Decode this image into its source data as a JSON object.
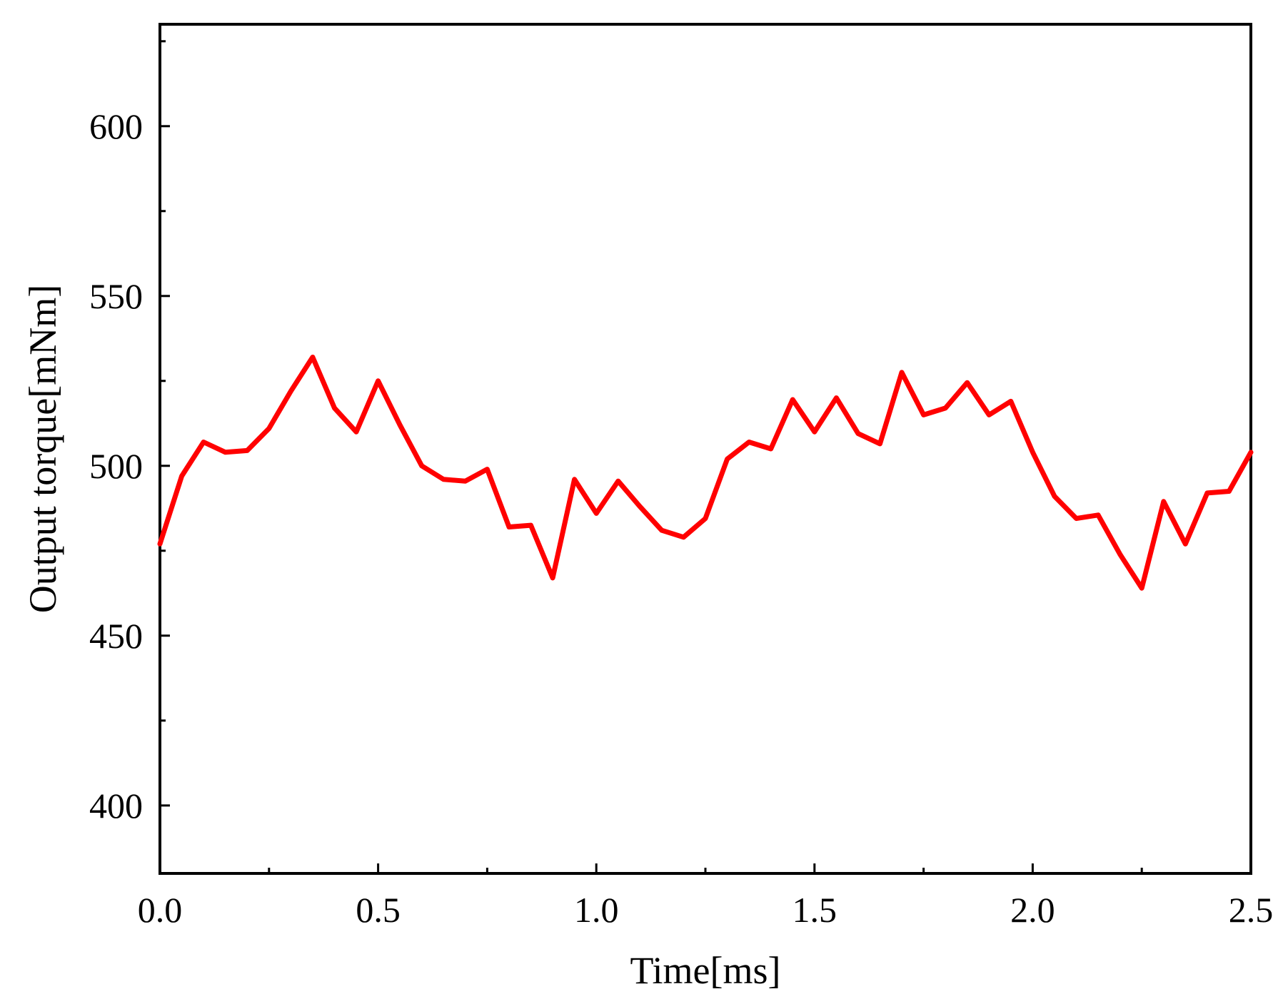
{
  "chart_data": {
    "type": "line",
    "title": "",
    "xlabel": "Time[ms]",
    "ylabel": "Output torque[mNm]",
    "xlim": [
      0,
      2.5
    ],
    "ylim": [
      380,
      630
    ],
    "x_ticks": [
      0.0,
      0.5,
      1.0,
      1.5,
      2.0,
      2.5
    ],
    "x_tick_labels": [
      "0.0",
      "0.5",
      "1.0",
      "1.5",
      "2.0",
      "2.5"
    ],
    "x_minor_ticks": [
      0.25,
      0.75,
      1.25,
      1.75,
      2.25
    ],
    "y_ticks": [
      400,
      450,
      500,
      550,
      600
    ],
    "y_tick_labels": [
      "400",
      "450",
      "500",
      "550",
      "600"
    ],
    "y_minor_ticks": [
      425,
      475,
      525,
      575,
      625
    ],
    "grid": false,
    "legend": "none",
    "series": [
      {
        "color": "#ff0000",
        "x": [
          0.0,
          0.05,
          0.1,
          0.15,
          0.2,
          0.25,
          0.3,
          0.35,
          0.4,
          0.45,
          0.5,
          0.55,
          0.6,
          0.65,
          0.7,
          0.75,
          0.8,
          0.85,
          0.9,
          0.95,
          1.0,
          1.05,
          1.1,
          1.15,
          1.2,
          1.25,
          1.3,
          1.35,
          1.4,
          1.45,
          1.5,
          1.55,
          1.6,
          1.65,
          1.7,
          1.75,
          1.8,
          1.85,
          1.9,
          1.95,
          2.0,
          2.05,
          2.1,
          2.15,
          2.2,
          2.25,
          2.3,
          2.35,
          2.4,
          2.45,
          2.5
        ],
        "values": [
          477,
          497,
          507,
          504,
          504.5,
          511,
          522,
          532,
          517,
          510,
          525,
          512,
          500,
          496,
          495.5,
          499,
          482,
          482.5,
          467,
          496,
          486,
          495.5,
          488,
          481,
          479,
          484.5,
          502,
          507,
          505,
          519.5,
          510,
          520,
          509.5,
          506.5,
          527.5,
          515,
          517,
          524.5,
          515,
          519,
          504,
          491,
          484.5,
          485.5,
          474,
          464,
          489.5,
          477,
          492,
          492.5,
          504
        ]
      }
    ]
  }
}
